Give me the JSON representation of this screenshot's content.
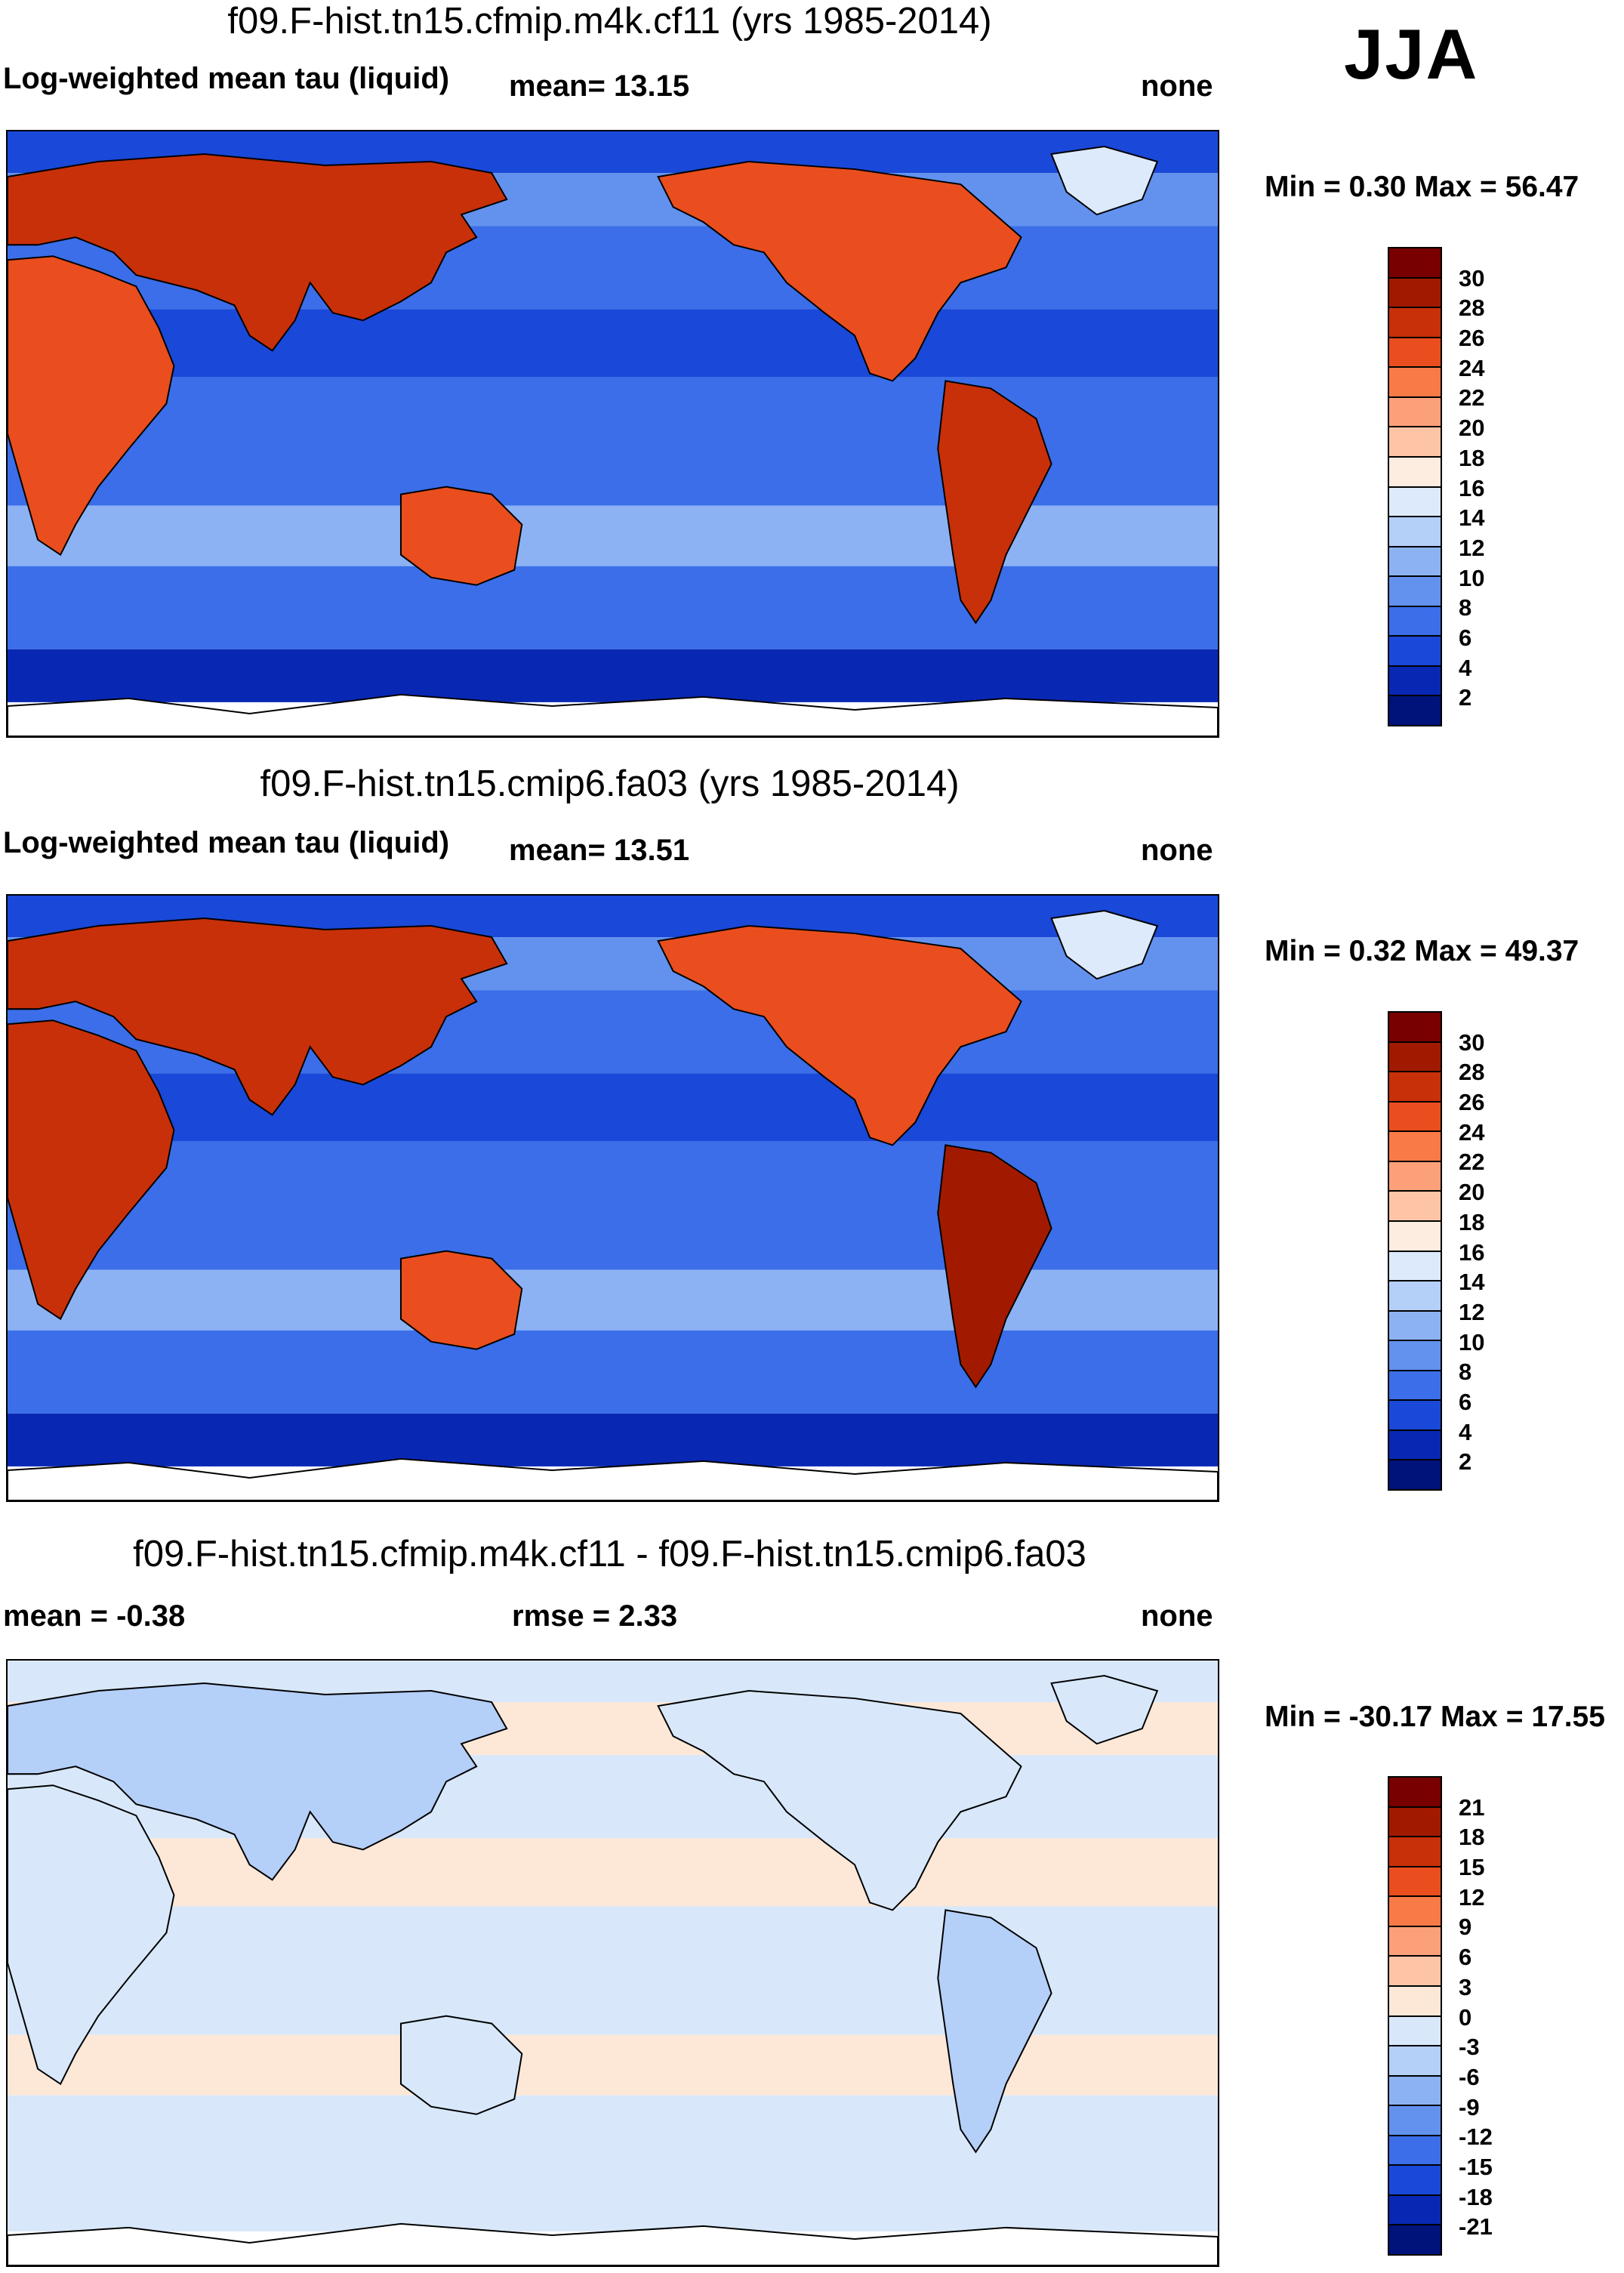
{
  "season": "JJA",
  "panels": [
    {
      "title": "f09.F-hist.tn15.cfmip.m4k.cf11 (yrs 1985-2014)",
      "left_label": "Log-weighted mean tau (liquid)",
      "mid_label": "mean=  13.15",
      "right_label": "none",
      "minmax": "Min =   0.30 Max =  56.47",
      "colorbar": {
        "labels": [
          "30",
          "28",
          "26",
          "24",
          "22",
          "20",
          "18",
          "16",
          "14",
          "12",
          "10",
          "8",
          "6",
          "4",
          "2"
        ],
        "colors": [
          "#780000",
          "#a11a00",
          "#c8300a",
          "#ea4e1e",
          "#f87a46",
          "#fca07a",
          "#fdc4a6",
          "#fdece0",
          "#dceafc",
          "#b4cff8",
          "#8cb2f3",
          "#6392ee",
          "#3b6ee8",
          "#1a48d8",
          "#0828b4",
          "#00137a"
        ]
      }
    },
    {
      "title": "f09.F-hist.tn15.cmip6.fa03 (yrs 1985-2014)",
      "left_label": "Log-weighted mean tau (liquid)",
      "mid_label": "mean=  13.51",
      "right_label": "none",
      "minmax": "Min =   0.32 Max =  49.37",
      "colorbar": {
        "labels": [
          "30",
          "28",
          "26",
          "24",
          "22",
          "20",
          "18",
          "16",
          "14",
          "12",
          "10",
          "8",
          "6",
          "4",
          "2"
        ],
        "colors": [
          "#780000",
          "#a11a00",
          "#c8300a",
          "#ea4e1e",
          "#f87a46",
          "#fca07a",
          "#fdc4a6",
          "#fdece0",
          "#dceafc",
          "#b4cff8",
          "#8cb2f3",
          "#6392ee",
          "#3b6ee8",
          "#1a48d8",
          "#0828b4",
          "#00137a"
        ]
      }
    },
    {
      "title": "f09.F-hist.tn15.cfmip.m4k.cf11 - f09.F-hist.tn15.cmip6.fa03",
      "left_label": "mean =  -0.38",
      "mid_label": "rmse =   2.33",
      "right_label": "none",
      "minmax": "Min = -30.17 Max =  17.55",
      "colorbar": {
        "labels": [
          "21",
          "18",
          "15",
          "12",
          "9",
          "6",
          "3",
          "0",
          "-3",
          "-6",
          "-9",
          "-12",
          "-15",
          "-18",
          "-21"
        ],
        "colors": [
          "#780000",
          "#a11a00",
          "#c8300a",
          "#ea4e1e",
          "#f87a46",
          "#fca07a",
          "#fdc4a6",
          "#fde8d8",
          "#d8e8fa",
          "#b4cff8",
          "#8cb2f3",
          "#6392ee",
          "#3b6ee8",
          "#1a48d8",
          "#0828b4",
          "#00137a"
        ]
      }
    }
  ]
}
